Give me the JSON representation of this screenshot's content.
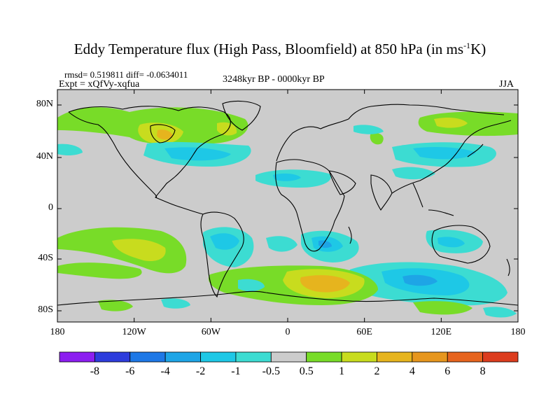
{
  "title": {
    "main": "Eddy Temperature flux (High Pass, Bloomfield) at 850 hPa (in ms",
    "unit_sup": "-1",
    "unit_tail": "K)"
  },
  "info": {
    "stats": "rmsd= 0.519811  diff= -0.0634011",
    "experiment": "Expt = xQfVy-xqfua",
    "period": "3248kyr BP - 0000kyr BP",
    "season": "JJA"
  },
  "axes": {
    "x_ticks": [
      "180",
      "120W",
      "60W",
      "0",
      "60E",
      "120E",
      "180"
    ],
    "y_ticks": [
      "80N",
      "40N",
      "0",
      "40S",
      "80S"
    ]
  },
  "colorbar": {
    "labels": [
      "-8",
      "-6",
      "-4",
      "-2",
      "-1",
      "-0.5",
      "0.5",
      "1",
      "2",
      "4",
      "6",
      "8"
    ],
    "colors": [
      "#8c1ef0",
      "#2d3cdc",
      "#1e78e6",
      "#1ea5e6",
      "#1ec8e6",
      "#3cdcd2",
      "#cccccc",
      "#78dc28",
      "#c8dc1e",
      "#e6b41e",
      "#e6961e",
      "#e6641e",
      "#dc3c1e"
    ]
  },
  "colors": {
    "land_line": "#000000",
    "background": "#cccccc",
    "cyan": "#3cdcd2",
    "sky": "#1ec8e6",
    "blue": "#1ea5e6",
    "lightgreen": "#78dc28",
    "yellowgreen": "#c8dc1e",
    "orange": "#e6b41e"
  }
}
